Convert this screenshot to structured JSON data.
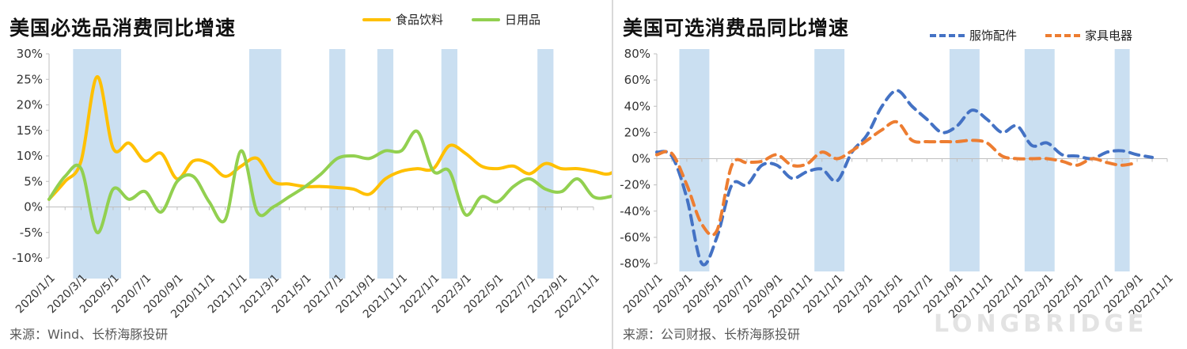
{
  "chart_data": [
    {
      "type": "line",
      "title": "美国必选品消费同比增速",
      "source": "来源：Wind、长桥海豚投研",
      "x_ticks": [
        "2020/1/1",
        "2020/3/1",
        "2020/5/1",
        "2020/7/1",
        "2020/9/1",
        "2020/11/1",
        "2021/1/1",
        "2021/3/1",
        "2021/5/1",
        "2021/7/1",
        "2021/9/1",
        "2021/11/1",
        "2022/1/1",
        "2022/3/1",
        "2022/5/1",
        "2022/7/1",
        "2022/9/1",
        "2022/11/1"
      ],
      "y_ticks": [
        "30%",
        "25%",
        "20%",
        "15%",
        "10%",
        "5%",
        "0%",
        "-5%",
        "-10%"
      ],
      "ylim": [
        -10,
        30
      ],
      "shaded_month_ranges": [
        [
          1.5,
          4.5
        ],
        [
          12.5,
          14.5
        ],
        [
          17.5,
          18.5
        ],
        [
          20.5,
          21.5
        ],
        [
          24.5,
          25.5
        ],
        [
          30.5,
          31.5
        ],
        [
          38.5,
          39.5
        ]
      ],
      "series": [
        {
          "name": "食品饮料",
          "color": "#FFC000",
          "style": "solid",
          "values": [
            1.5,
            5,
            9,
            25.5,
            11.5,
            12.5,
            9,
            10.5,
            5.5,
            9,
            8.5,
            6,
            8,
            9.5,
            5,
            4.5,
            4,
            4,
            3.8,
            3.5,
            2.5,
            5.5,
            7,
            7.5,
            7.5,
            12,
            10.5,
            8,
            7.5,
            8,
            6.5,
            8.5,
            7.5,
            7.5,
            7,
            6.5,
            8.7
          ]
        },
        {
          "name": "日用品",
          "color": "#92D050",
          "style": "solid",
          "values": [
            1.5,
            6,
            7.5,
            -5,
            3.5,
            1.5,
            3,
            -1,
            5,
            6,
            1,
            -2.5,
            11,
            -1,
            0,
            2,
            4,
            6.5,
            9.5,
            10,
            9.5,
            11,
            11,
            14.8,
            7,
            7,
            -1.5,
            2,
            1,
            4,
            5.5,
            3.5,
            3,
            5.5,
            2,
            2,
            3.2
          ]
        }
      ]
    },
    {
      "type": "line",
      "title": "美国可选消费品同比增速",
      "source": "来源：公司财报、长桥海豚投研",
      "x_ticks": [
        "2020/1/1",
        "2020/3/1",
        "2020/5/1",
        "2020/7/1",
        "2020/9/1",
        "2020/11/1",
        "2021/1/1",
        "2021/3/1",
        "2021/5/1",
        "2021/7/1",
        "2021/9/1",
        "2021/11/1",
        "2022/1/1",
        "2022/3/1",
        "2022/5/1",
        "2022/7/1",
        "2022/9/1",
        "2022/11/1"
      ],
      "y_ticks": [
        "80%",
        "60%",
        "40%",
        "20%",
        "0%",
        "-20%",
        "-40%",
        "-60%",
        "-80%"
      ],
      "ylim": [
        -80,
        80
      ],
      "shaded_month_ranges": [
        [
          1.5,
          3.5
        ],
        [
          10.5,
          12.5
        ],
        [
          19.5,
          21.5
        ],
        [
          24.5,
          26.5
        ],
        [
          30.5,
          31.5
        ]
      ],
      "series": [
        {
          "name": "服饰配件",
          "color": "#4472C4",
          "style": "dashed",
          "values": [
            5,
            2,
            -30,
            -80,
            -60,
            -20,
            -20,
            -5,
            -5,
            -15,
            -10,
            -8,
            -17,
            5,
            18,
            40,
            52,
            40,
            30,
            20,
            25,
            37,
            30,
            20,
            25,
            10,
            12,
            3,
            2,
            0,
            5,
            6,
            3,
            1
          ]
        },
        {
          "name": "家具电器",
          "color": "#ED7D31",
          "style": "dashed",
          "values": [
            3,
            4,
            -20,
            -50,
            -55,
            -5,
            -3,
            -2,
            3,
            -5,
            -4,
            5,
            0,
            6,
            14,
            22,
            28,
            14,
            13,
            13,
            13,
            14,
            12,
            2,
            0,
            0,
            0,
            -2,
            -5,
            0,
            -3,
            -5,
            -3
          ]
        }
      ]
    }
  ],
  "brand_watermark": "LONGBRIDGE"
}
